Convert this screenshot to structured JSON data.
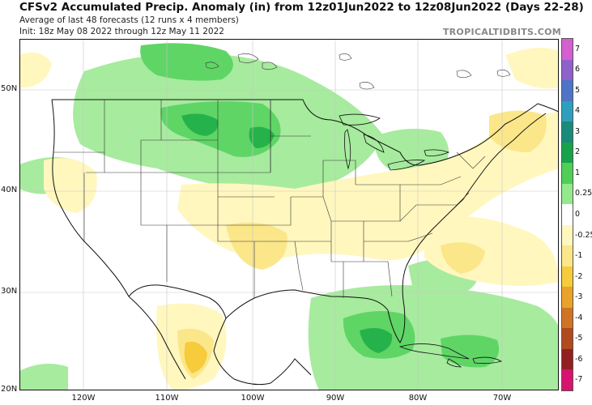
{
  "header": {
    "title": "CFSv2 Accumulated Precip. Anomaly (in) from 12z01Jun2022 to 12z08Jun2022 (Days 22-28)",
    "subtitle1": "Average of last 48 forecasts (12 runs x 4 members)",
    "subtitle2": "Init: 18z May 08 2022 through 12z May 11 2022",
    "credit": "TROPICALTIDBITS.COM"
  },
  "axes": {
    "lat_labels": [
      "50N",
      "40N",
      "30N",
      "20N"
    ],
    "lon_labels": [
      "120W",
      "110W",
      "100W",
      "90W",
      "80W",
      "70W"
    ]
  },
  "colorbar": {
    "levels": [
      {
        "label": "7",
        "color": "#d45fd0"
      },
      {
        "label": "6",
        "color": "#8f62c9"
      },
      {
        "label": "5",
        "color": "#4d74c6"
      },
      {
        "label": "4",
        "color": "#2f9fbf"
      },
      {
        "label": "3",
        "color": "#1a8a7a"
      },
      {
        "label": "2",
        "color": "#17a24b"
      },
      {
        "label": "1",
        "color": "#4fcf55"
      },
      {
        "label": "0.25",
        "color": "#93e98c"
      },
      {
        "label": "0",
        "color": "#ffffff"
      },
      {
        "label": "-0.25",
        "color": "#fff7be"
      },
      {
        "label": "-1",
        "color": "#fbe68a"
      },
      {
        "label": "-2",
        "color": "#f6cb3c"
      },
      {
        "label": "-3",
        "color": "#e9a32a"
      },
      {
        "label": "-4",
        "color": "#cf7424"
      },
      {
        "label": "-5",
        "color": "#b04a1f"
      },
      {
        "label": "-6",
        "color": "#922020"
      },
      {
        "label": "-7",
        "color": "#d6136f"
      }
    ]
  }
}
